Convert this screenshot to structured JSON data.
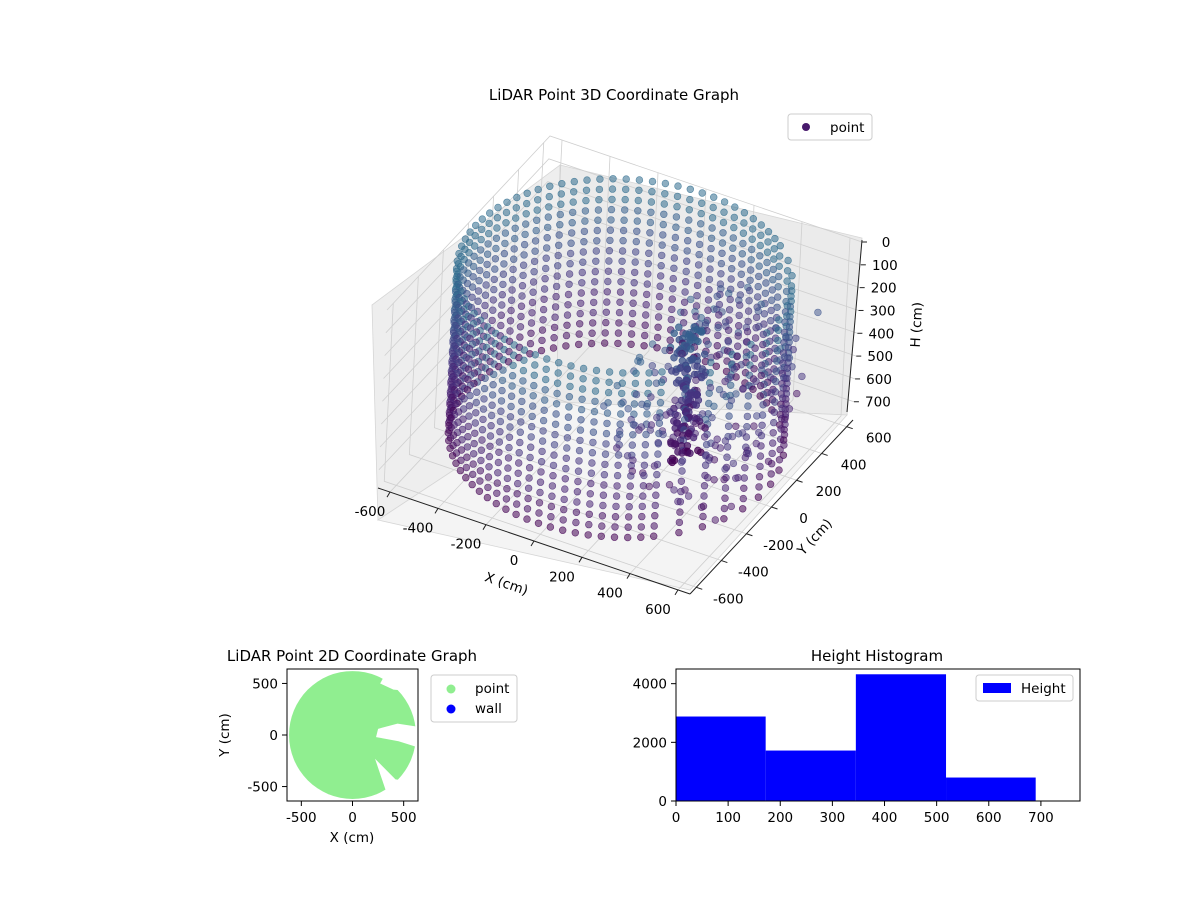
{
  "chart_data": [
    {
      "type": "scatter",
      "projection": "3d",
      "title": "LiDAR Point 3D Coordinate Graph",
      "xlabel": "X (cm)",
      "ylabel": "Y (cm)",
      "zlabel": "H (cm)",
      "xlim": [
        -650,
        650
      ],
      "ylim": [
        -650,
        650
      ],
      "zlim": [
        780,
        0
      ],
      "x_ticks": [
        "-600",
        "-400",
        "-200",
        "0",
        "200",
        "400",
        "600"
      ],
      "y_ticks": [
        "-600",
        "-400",
        "-200",
        "0",
        "200",
        "400",
        "600"
      ],
      "z_ticks": [
        "0",
        "100",
        "200",
        "300",
        "400",
        "500",
        "600",
        "700"
      ],
      "z_axis_inverted": true,
      "grid": true,
      "legend_position": "top-right",
      "legend": [
        {
          "label": "point",
          "color": "#481a6c"
        }
      ],
      "colormap": "viridis",
      "series": [
        {
          "name": "point",
          "shape": "cylindrical wall of points",
          "radius": 620,
          "height_range": [
            0,
            720
          ]
        },
        {
          "name": "point",
          "shape": "column cluster",
          "x_range": [
            230,
            330
          ],
          "y_range": [
            -80,
            80
          ],
          "height_range": [
            100,
            720
          ]
        },
        {
          "name": "point",
          "shape": "scattered interior points",
          "x_range": [
            150,
            620
          ],
          "y_range": [
            -450,
            450
          ],
          "height_range": [
            150,
            650
          ]
        }
      ]
    },
    {
      "type": "scatter",
      "title": "LiDAR Point 2D Coordinate Graph",
      "xlabel": "X (cm)",
      "ylabel": "Y (cm)",
      "xlim": [
        -640,
        640
      ],
      "ylim": [
        -640,
        640
      ],
      "x_ticks": [
        "-500",
        "0",
        "500"
      ],
      "y_ticks": [
        "500",
        "0",
        "-500"
      ],
      "legend_position": "right-outside",
      "legend": [
        {
          "label": "point",
          "color": "#90ee90"
        },
        {
          "label": "wall",
          "color": "#0000ff"
        }
      ],
      "series": [
        {
          "name": "point",
          "color": "#90ee90",
          "shape": "filled disc",
          "radius": 620
        }
      ]
    },
    {
      "type": "bar",
      "subtype": "histogram",
      "title": "Height Histogram",
      "xlim": [
        0,
        775
      ],
      "ylim": [
        0,
        4500
      ],
      "x_ticks": [
        "0",
        "100",
        "200",
        "300",
        "400",
        "500",
        "600",
        "700"
      ],
      "y_ticks": [
        "0",
        "2000",
        "4000"
      ],
      "legend_position": "top-right",
      "legend": [
        {
          "label": "Height",
          "color": "#0000ff"
        }
      ],
      "bins": [
        {
          "start": 0,
          "end": 172,
          "count": 2880
        },
        {
          "start": 172,
          "end": 345,
          "count": 1720
        },
        {
          "start": 345,
          "end": 518,
          "count": 4320
        },
        {
          "start": 518,
          "end": 690,
          "count": 800
        }
      ],
      "color": "#0000ff"
    }
  ]
}
